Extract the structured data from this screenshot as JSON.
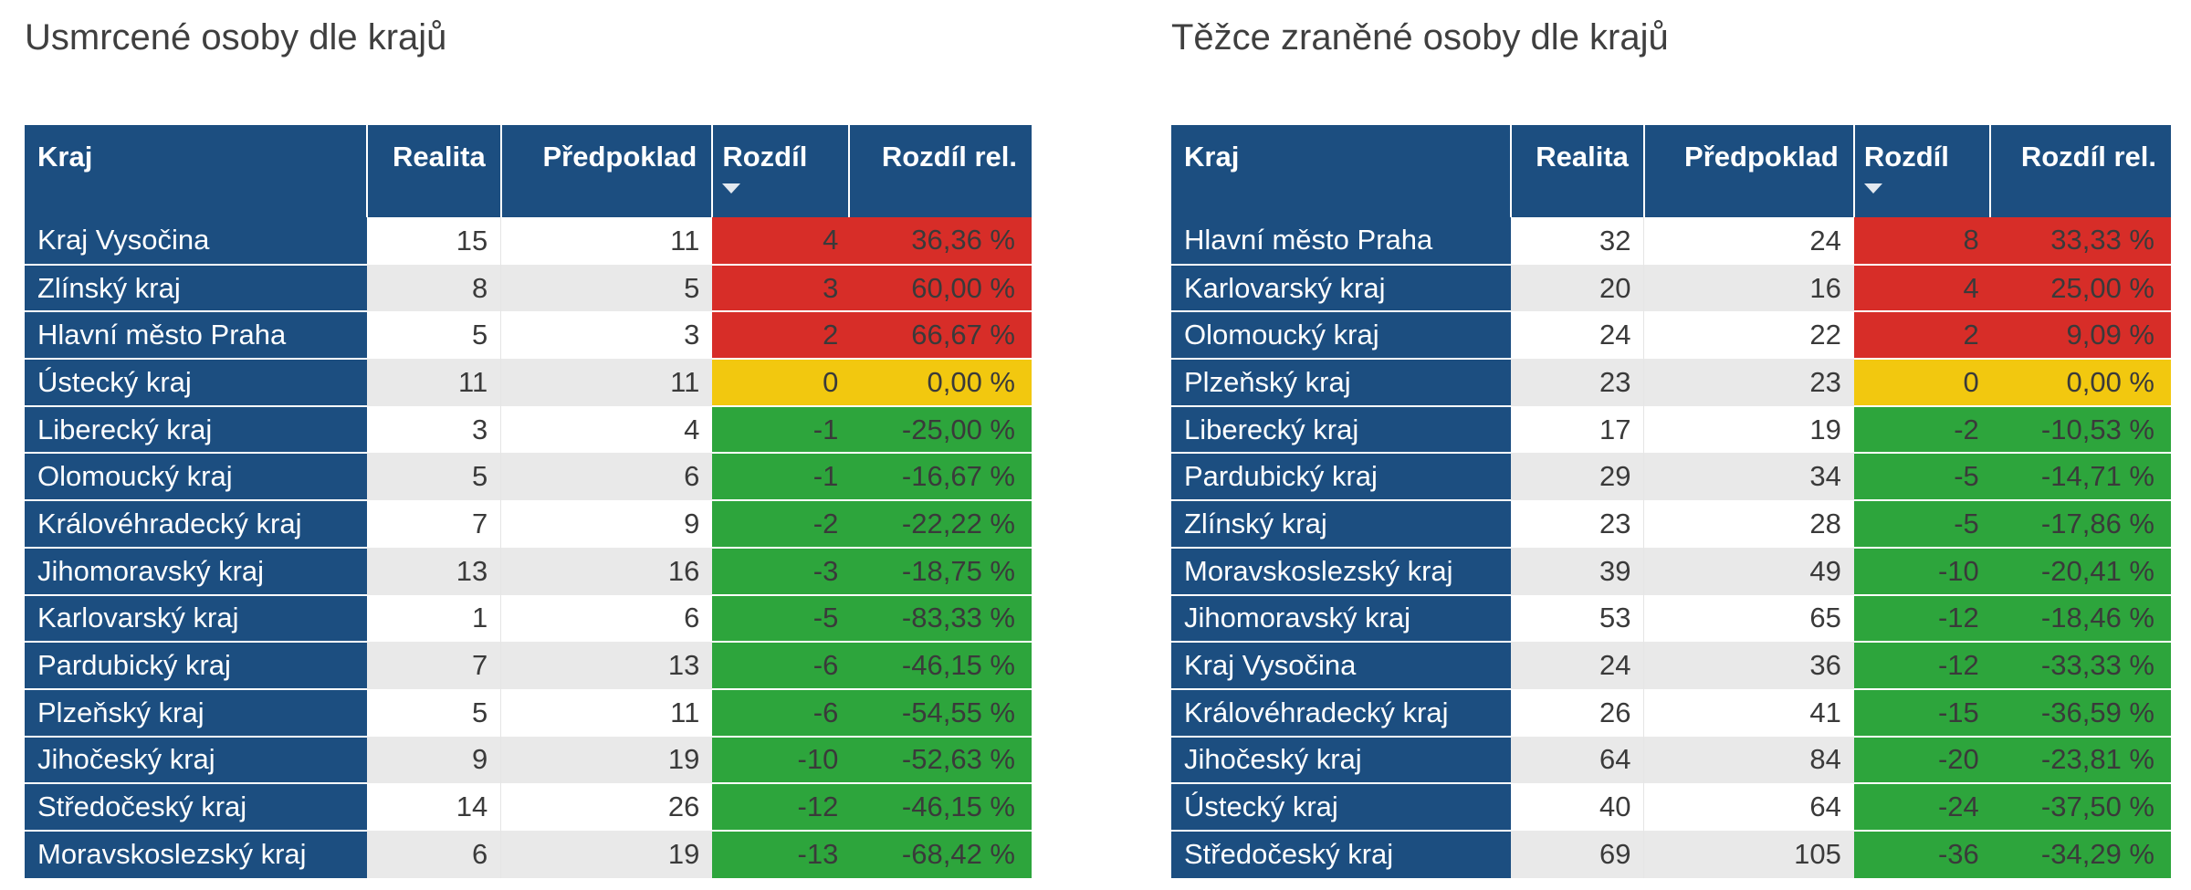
{
  "colors": {
    "header_blue": "#1C4E80",
    "band_gray": "#E9E9E9",
    "band_white": "#FFFFFF",
    "title_text": "#3F3F3F",
    "cell_text": "#3A3A3A",
    "header_text": "#FFFFFF",
    "diff_positive_red": "#D72D28",
    "diff_zero_yellow": "#F2C80F",
    "diff_negative_green": "#2DA53C"
  },
  "chart_data": [
    {
      "type": "table",
      "title": "Usmrcené osoby dle krajů",
      "columns": [
        "Kraj",
        "Realita",
        "Předpoklad",
        "Rozdíl",
        "Rozdíl rel."
      ],
      "sort": {
        "column": "Rozdíl",
        "direction": "descending",
        "icon": "triangle-down"
      },
      "conditional_format": "Rozdíl > 0 red, Rozdíl = 0 yellow, Rozdíl < 0 green",
      "rows": [
        [
          "Kraj Vysočina",
          15,
          11,
          4,
          "36,36 %"
        ],
        [
          "Zlínský kraj",
          8,
          5,
          3,
          "60,00 %"
        ],
        [
          "Hlavní město Praha",
          5,
          3,
          2,
          "66,67 %"
        ],
        [
          "Ústecký kraj",
          11,
          11,
          0,
          "0,00 %"
        ],
        [
          "Liberecký kraj",
          3,
          4,
          -1,
          "-25,00 %"
        ],
        [
          "Olomoucký kraj",
          5,
          6,
          -1,
          "-16,67 %"
        ],
        [
          "Královéhradecký kraj",
          7,
          9,
          -2,
          "-22,22 %"
        ],
        [
          "Jihomoravský kraj",
          13,
          16,
          -3,
          "-18,75 %"
        ],
        [
          "Karlovarský kraj",
          1,
          6,
          -5,
          "-83,33 %"
        ],
        [
          "Pardubický kraj",
          7,
          13,
          -6,
          "-46,15 %"
        ],
        [
          "Plzeňský kraj",
          5,
          11,
          -6,
          "-54,55 %"
        ],
        [
          "Jihočeský kraj",
          9,
          19,
          -10,
          "-52,63 %"
        ],
        [
          "Středočeský kraj",
          14,
          26,
          -12,
          "-46,15 %"
        ],
        [
          "Moravskoslezský kraj",
          6,
          19,
          -13,
          "-68,42 %"
        ]
      ]
    },
    {
      "type": "table",
      "title": "Těžce zraněné osoby dle krajů",
      "columns": [
        "Kraj",
        "Realita",
        "Předpoklad",
        "Rozdíl",
        "Rozdíl rel."
      ],
      "sort": {
        "column": "Rozdíl",
        "direction": "descending",
        "icon": "triangle-down"
      },
      "conditional_format": "Rozdíl > 0 red, Rozdíl = 0 yellow, Rozdíl < 0 green",
      "rows": [
        [
          "Hlavní město Praha",
          32,
          24,
          8,
          "33,33 %"
        ],
        [
          "Karlovarský kraj",
          20,
          16,
          4,
          "25,00 %"
        ],
        [
          "Olomoucký kraj",
          24,
          22,
          2,
          "9,09 %"
        ],
        [
          "Plzeňský kraj",
          23,
          23,
          0,
          "0,00 %"
        ],
        [
          "Liberecký kraj",
          17,
          19,
          -2,
          "-10,53 %"
        ],
        [
          "Pardubický kraj",
          29,
          34,
          -5,
          "-14,71 %"
        ],
        [
          "Zlínský kraj",
          23,
          28,
          -5,
          "-17,86 %"
        ],
        [
          "Moravskoslezský kraj",
          39,
          49,
          -10,
          "-20,41 %"
        ],
        [
          "Jihomoravský kraj",
          53,
          65,
          -12,
          "-18,46 %"
        ],
        [
          "Kraj Vysočina",
          24,
          36,
          -12,
          "-33,33 %"
        ],
        [
          "Královéhradecký kraj",
          26,
          41,
          -15,
          "-36,59 %"
        ],
        [
          "Jihočeský kraj",
          64,
          84,
          -20,
          "-23,81 %"
        ],
        [
          "Ústecký kraj",
          40,
          64,
          -24,
          "-37,50 %"
        ],
        [
          "Středočeský kraj",
          69,
          105,
          -36,
          "-34,29 %"
        ]
      ]
    }
  ]
}
